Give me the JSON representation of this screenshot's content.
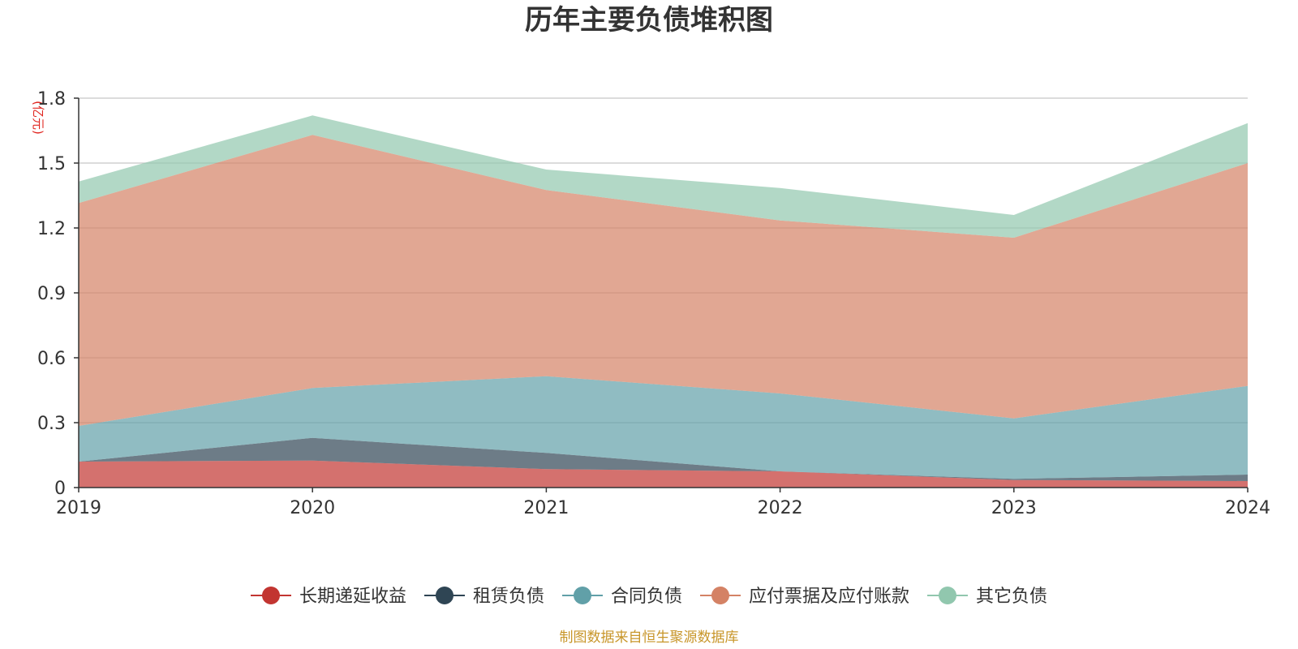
{
  "chart_data": {
    "type": "area",
    "stacked": true,
    "title": "历年主要负债堆积图",
    "unit_label": "(亿元)",
    "x": [
      "2019",
      "2020",
      "2021",
      "2022",
      "2023",
      "2024"
    ],
    "y_ticks": [
      "0",
      "0.3",
      "0.6",
      "0.9",
      "1.2",
      "1.5",
      "1.8"
    ],
    "ylim": [
      0,
      1.8
    ],
    "grid": true,
    "legend_position": "bottom",
    "series": [
      {
        "name": "长期递延收益",
        "color": "#c23531",
        "values": [
          0.12,
          0.125,
          0.085,
          0.075,
          0.035,
          0.03
        ]
      },
      {
        "name": "租赁负债",
        "color": "#2f4554",
        "values": [
          0.0,
          0.105,
          0.075,
          0.0,
          0.005,
          0.03
        ]
      },
      {
        "name": "合同负债",
        "color": "#61a0a8",
        "values": [
          0.165,
          0.23,
          0.355,
          0.36,
          0.28,
          0.41
        ]
      },
      {
        "name": "应付票据及应付账款",
        "color": "#d48265",
        "values": [
          1.03,
          1.17,
          0.86,
          0.8,
          0.835,
          1.03
        ]
      },
      {
        "name": "其它负债",
        "color": "#91c7ae",
        "values": [
          0.1,
          0.09,
          0.095,
          0.15,
          0.105,
          0.185
        ]
      }
    ]
  },
  "footer": {
    "source": "制图数据来自恒生聚源数据库"
  }
}
